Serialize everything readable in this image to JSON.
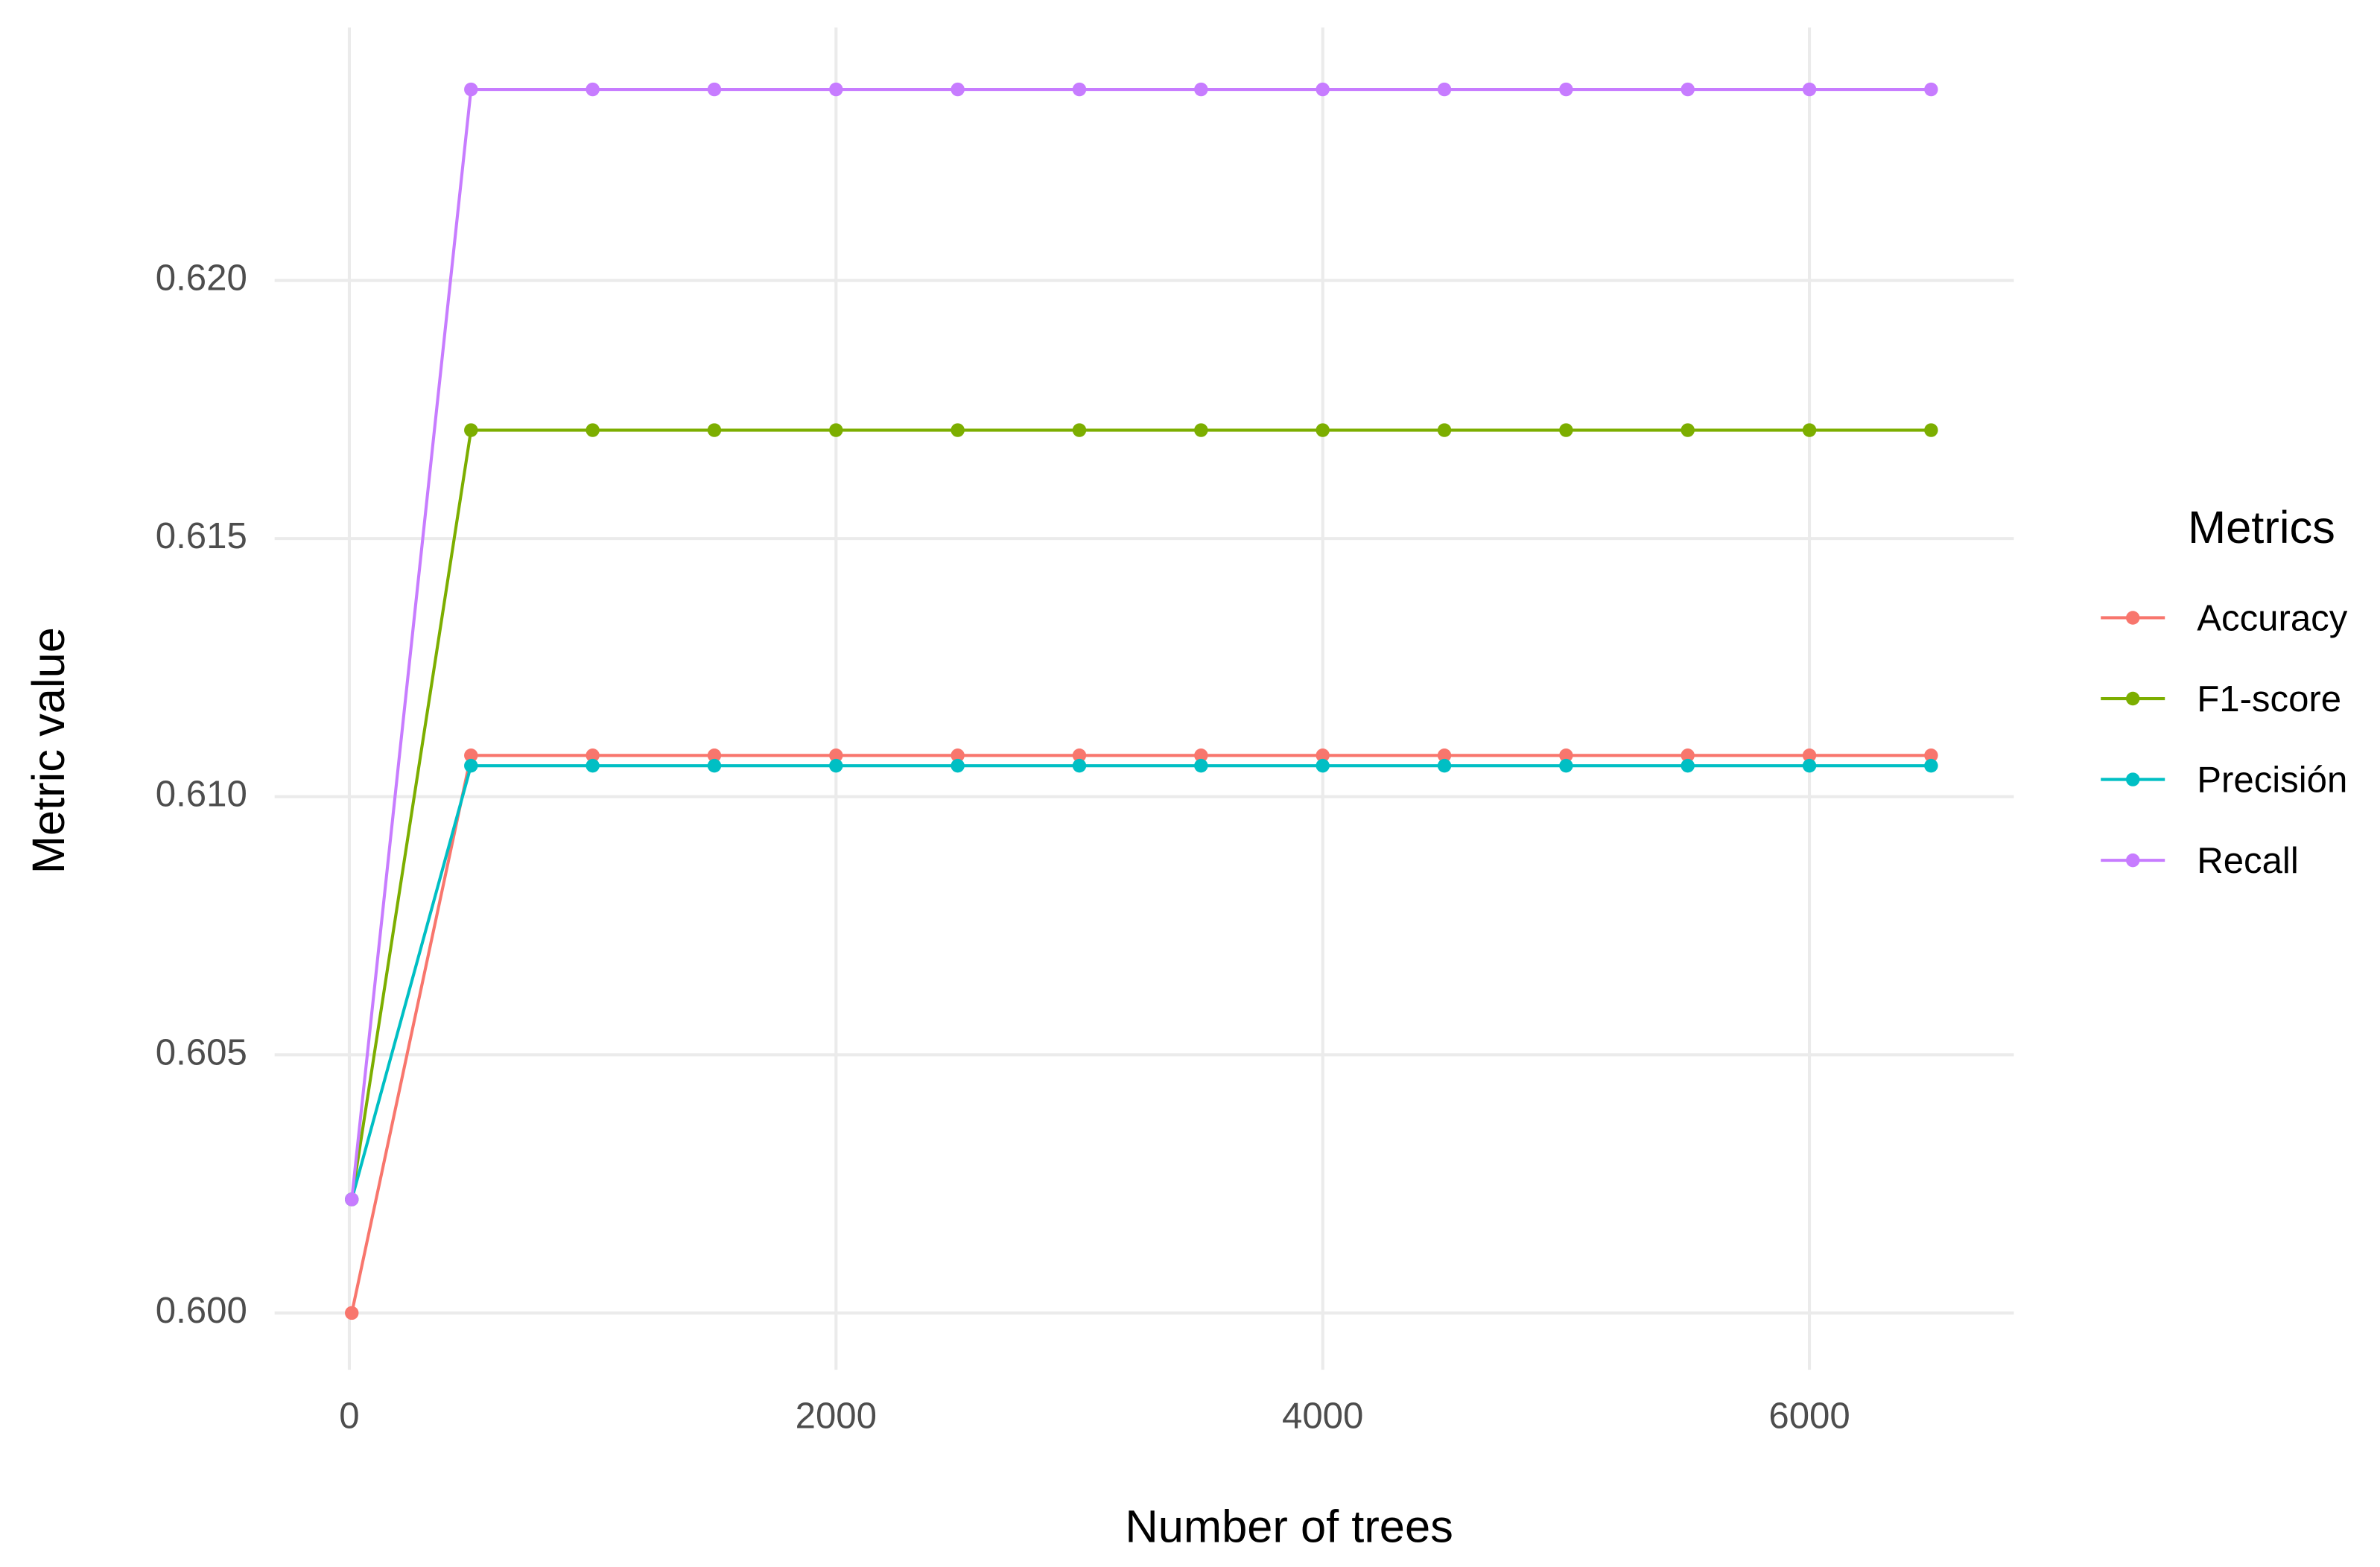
{
  "chart_data": {
    "type": "line",
    "x_label": "Number of trees",
    "y_label": "Metric value",
    "legend_title": "Metrics",
    "x": [
      10,
      500,
      1000,
      1500,
      2000,
      2500,
      3000,
      3500,
      4000,
      4500,
      5000,
      5500,
      6000,
      6500
    ],
    "series": [
      {
        "name": "Accuracy",
        "color": "#F8766D",
        "values": [
          0.6,
          0.6108,
          0.6108,
          0.6108,
          0.6108,
          0.6108,
          0.6108,
          0.6108,
          0.6108,
          0.6108,
          0.6108,
          0.6108,
          0.6108,
          0.6108
        ]
      },
      {
        "name": "F1-score",
        "color": "#7CAE00",
        "values": [
          0.6022,
          0.6171,
          0.6171,
          0.6171,
          0.6171,
          0.6171,
          0.6171,
          0.6171,
          0.6171,
          0.6171,
          0.6171,
          0.6171,
          0.6171,
          0.6171
        ]
      },
      {
        "name": "Precisión",
        "color": "#00BFC4",
        "values": [
          0.6022,
          0.6106,
          0.6106,
          0.6106,
          0.6106,
          0.6106,
          0.6106,
          0.6106,
          0.6106,
          0.6106,
          0.6106,
          0.6106,
          0.6106,
          0.6106
        ]
      },
      {
        "name": "Recall",
        "color": "#C77CFF",
        "values": [
          0.6022,
          0.6237,
          0.6237,
          0.6237,
          0.6237,
          0.6237,
          0.6237,
          0.6237,
          0.6237,
          0.6237,
          0.6237,
          0.6237,
          0.6237,
          0.6237
        ]
      }
    ],
    "xlim": [
      -307,
      6840
    ],
    "ylim": [
      0.5989,
      0.6249
    ],
    "xticks": [
      0,
      2000,
      4000,
      6000
    ],
    "yticks": [
      {
        "value": 0.6,
        "label": "0.600"
      },
      {
        "value": 0.605,
        "label": "0.605"
      },
      {
        "value": 0.61,
        "label": "0.610"
      },
      {
        "value": 0.615,
        "label": "0.615"
      },
      {
        "value": 0.62,
        "label": "0.620"
      }
    ],
    "grid": true,
    "legend_position": "right"
  }
}
